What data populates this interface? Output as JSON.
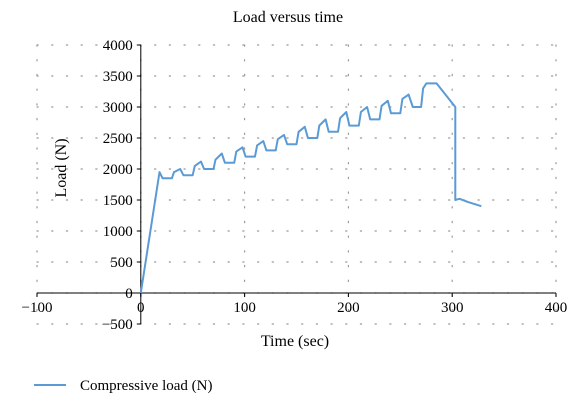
{
  "chart_data": {
    "type": "line",
    "title": "Load versus time",
    "xlabel": "Time (sec)",
    "ylabel": "Load (N)",
    "xlim": [
      -100,
      400
    ],
    "ylim": [
      -500,
      4000
    ],
    "xticks": [
      -100,
      0,
      100,
      200,
      300,
      400
    ],
    "yticks": [
      -500,
      0,
      500,
      1000,
      1500,
      2000,
      2500,
      3000,
      3500,
      4000
    ],
    "xtick_labels": [
      "−100",
      "0",
      "100",
      "200",
      "300",
      "400"
    ],
    "ytick_labels": [
      "−500",
      "0",
      "500",
      "1000",
      "1500",
      "2000",
      "2500",
      "3000",
      "3500",
      "4000"
    ],
    "grid": "dotted",
    "legend": "bottom-left",
    "series": [
      {
        "name": "Compressive load (N)",
        "color": "#5b9bd5",
        "x": [
          0,
          18,
          21,
          30,
          32,
          38,
          41,
          50,
          52,
          58,
          61,
          70,
          72,
          78,
          81,
          90,
          92,
          98,
          101,
          110,
          112,
          118,
          121,
          130,
          132,
          138,
          141,
          150,
          152,
          158,
          161,
          170,
          172,
          178,
          181,
          190,
          192,
          198,
          201,
          210,
          212,
          218,
          221,
          230,
          232,
          238,
          241,
          250,
          252,
          258,
          262,
          270,
          272,
          275,
          278,
          285,
          303,
          303,
          307,
          315,
          328
        ],
        "y": [
          0,
          1950,
          1850,
          1850,
          1950,
          2000,
          1900,
          1900,
          2050,
          2120,
          2000,
          2000,
          2150,
          2250,
          2100,
          2100,
          2280,
          2350,
          2200,
          2200,
          2380,
          2450,
          2300,
          2300,
          2480,
          2550,
          2400,
          2400,
          2600,
          2680,
          2500,
          2500,
          2700,
          2800,
          2600,
          2600,
          2820,
          2920,
          2700,
          2700,
          2920,
          3000,
          2800,
          2800,
          3020,
          3100,
          2900,
          2900,
          3130,
          3200,
          3000,
          3000,
          3300,
          3380,
          3380,
          3380,
          3000,
          1500,
          1520,
          1470,
          1400
        ]
      }
    ]
  }
}
